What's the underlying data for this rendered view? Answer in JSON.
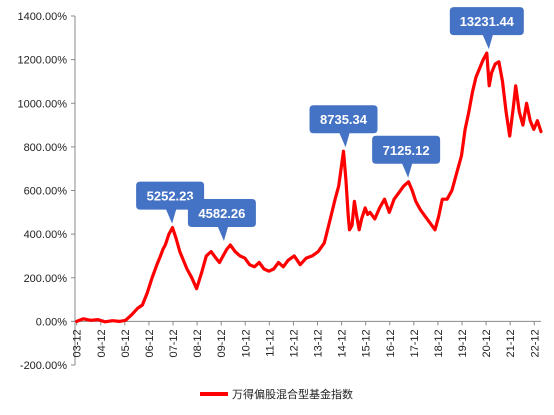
{
  "chart_data": {
    "type": "line",
    "title": "",
    "xlabel": "",
    "ylabel": "",
    "ylim": [
      -200,
      1400
    ],
    "y_ticks": [
      -200,
      0,
      200,
      400,
      600,
      800,
      1000,
      1200,
      1400
    ],
    "y_tick_labels": [
      "-200.00%",
      "0.00%",
      "200.00%",
      "400.00%",
      "600.00%",
      "800.00%",
      "1000.00%",
      "1200.00%",
      "1400.00%"
    ],
    "x_range": [
      2003.85,
      2023.2
    ],
    "x_ticks": [
      2003.92,
      2004.92,
      2005.92,
      2006.92,
      2007.92,
      2008.92,
      2009.92,
      2010.92,
      2011.92,
      2012.92,
      2013.92,
      2014.92,
      2015.92,
      2016.92,
      2017.92,
      2018.92,
      2019.92,
      2020.92,
      2021.92,
      2022.92
    ],
    "x_tick_labels": [
      "03-12",
      "04-12",
      "05-12",
      "06-12",
      "07-12",
      "08-12",
      "09-12",
      "10-12",
      "11-12",
      "12-12",
      "13-12",
      "14-12",
      "15-12",
      "16-12",
      "17-12",
      "18-12",
      "19-12",
      "20-12",
      "21-12",
      "22-12"
    ],
    "legend_position": "bottom-center",
    "grid": false,
    "series": [
      {
        "name": "万得偏股混合型基金指数",
        "color": "#ff0000",
        "x": [
          2003.92,
          2004.2,
          2004.5,
          2004.8,
          2005.1,
          2005.4,
          2005.7,
          2005.95,
          2006.2,
          2006.45,
          2006.65,
          2006.85,
          2007.05,
          2007.25,
          2007.4,
          2007.5,
          2007.6,
          2007.75,
          2007.9,
          2008.05,
          2008.2,
          2008.35,
          2008.5,
          2008.7,
          2008.9,
          2009.1,
          2009.3,
          2009.5,
          2009.7,
          2009.85,
          2010.0,
          2010.15,
          2010.3,
          2010.5,
          2010.7,
          2010.9,
          2011.1,
          2011.3,
          2011.5,
          2011.7,
          2011.9,
          2012.1,
          2012.3,
          2012.5,
          2012.7,
          2012.95,
          2013.2,
          2013.45,
          2013.7,
          2013.95,
          2014.2,
          2014.45,
          2014.65,
          2014.8,
          2014.9,
          2015.0,
          2015.1,
          2015.2,
          2015.25,
          2015.35,
          2015.45,
          2015.55,
          2015.65,
          2015.75,
          2015.9,
          2016.0,
          2016.1,
          2016.3,
          2016.5,
          2016.7,
          2016.9,
          2017.1,
          2017.3,
          2017.5,
          2017.7,
          2017.85,
          2018.0,
          2018.2,
          2018.4,
          2018.6,
          2018.8,
          2018.95,
          2019.1,
          2019.3,
          2019.5,
          2019.7,
          2019.9,
          2020.05,
          2020.2,
          2020.35,
          2020.5,
          2020.65,
          2020.8,
          2020.95,
          2021.05,
          2021.15,
          2021.3,
          2021.45,
          2021.6,
          2021.75,
          2021.9,
          2022.05,
          2022.15,
          2022.3,
          2022.45,
          2022.6,
          2022.75,
          2022.9,
          2023.05,
          2023.2
        ],
        "y": [
          0,
          12,
          5,
          8,
          -2,
          3,
          0,
          5,
          30,
          60,
          75,
          130,
          200,
          260,
          300,
          330,
          350,
          400,
          430,
          380,
          320,
          280,
          240,
          200,
          150,
          220,
          300,
          320,
          290,
          270,
          300,
          330,
          350,
          320,
          300,
          290,
          260,
          250,
          270,
          240,
          230,
          240,
          270,
          250,
          280,
          300,
          260,
          290,
          300,
          320,
          360,
          470,
          560,
          620,
          700,
          780,
          650,
          480,
          420,
          440,
          550,
          480,
          420,
          470,
          520,
          490,
          500,
          470,
          520,
          560,
          500,
          560,
          590,
          620,
          640,
          600,
          550,
          510,
          480,
          450,
          420,
          480,
          560,
          560,
          600,
          680,
          760,
          880,
          960,
          1050,
          1120,
          1160,
          1200,
          1230,
          1080,
          1140,
          1180,
          1190,
          1100,
          960,
          850,
          980,
          1080,
          960,
          900,
          1000,
          920,
          880,
          920,
          870
        ]
      }
    ],
    "callouts": [
      {
        "text": "5252.23",
        "x": 2007.8,
        "y": 430
      },
      {
        "text": "4582.26",
        "x": 2009.95,
        "y": 350
      },
      {
        "text": "8735.34",
        "x": 2015.0,
        "y": 780
      },
      {
        "text": "7125.12",
        "x": 2017.6,
        "y": 640
      },
      {
        "text": "13231.44",
        "x": 2020.95,
        "y": 1230
      }
    ],
    "callout_color": "#4472c4",
    "axis_color": "#888888"
  }
}
